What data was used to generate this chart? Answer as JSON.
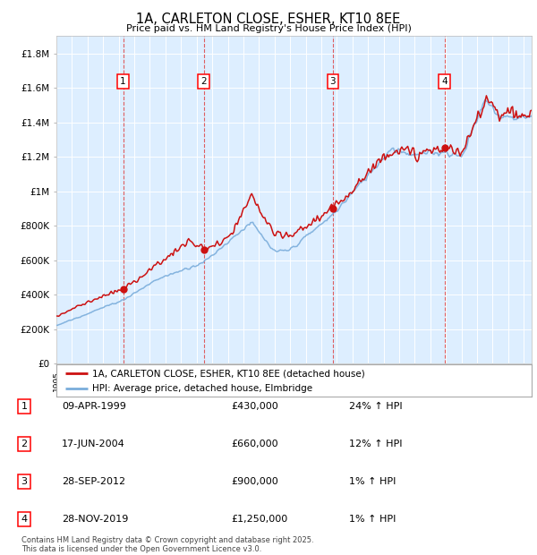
{
  "title": "1A, CARLETON CLOSE, ESHER, KT10 8EE",
  "subtitle": "Price paid vs. HM Land Registry's House Price Index (HPI)",
  "ylabel_ticks": [
    "£0",
    "£200K",
    "£400K",
    "£600K",
    "£800K",
    "£1M",
    "£1.2M",
    "£1.4M",
    "£1.6M",
    "£1.8M"
  ],
  "ylabel_vals": [
    0,
    200000,
    400000,
    600000,
    800000,
    1000000,
    1200000,
    1400000,
    1600000,
    1800000
  ],
  "ylim": [
    0,
    1900000
  ],
  "xlim_start": 1995.0,
  "xlim_end": 2025.5,
  "background_color": "#ddeeff",
  "hpi_color": "#7aaddb",
  "prop_color": "#cc1111",
  "sale_color": "#cc1111",
  "vline_color": "#dd4444",
  "legend1": "1A, CARLETON CLOSE, ESHER, KT10 8EE (detached house)",
  "legend2": "HPI: Average price, detached house, Elmbridge",
  "sale_points": [
    {
      "label": "1",
      "date_num": 1999.28,
      "price": 430000,
      "pct": "24%",
      "date_str": "09-APR-1999"
    },
    {
      "label": "2",
      "date_num": 2004.46,
      "price": 660000,
      "pct": "12%",
      "date_str": "17-JUN-2004"
    },
    {
      "label": "3",
      "date_num": 2012.74,
      "price": 900000,
      "pct": "1%",
      "date_str": "28-SEP-2012"
    },
    {
      "label": "4",
      "date_num": 2019.91,
      "price": 1250000,
      "pct": "1%",
      "date_str": "28-NOV-2019"
    }
  ],
  "footer": "Contains HM Land Registry data © Crown copyright and database right 2025.\nThis data is licensed under the Open Government Licence v3.0.",
  "table_rows": [
    [
      "1",
      "09-APR-1999",
      "£430,000",
      "24% ↑ HPI"
    ],
    [
      "2",
      "17-JUN-2004",
      "£660,000",
      "12% ↑ HPI"
    ],
    [
      "3",
      "28-SEP-2012",
      "£900,000",
      "1% ↑ HPI"
    ],
    [
      "4",
      "28-NOV-2019",
      "£1,250,000",
      "1% ↑ HPI"
    ]
  ]
}
